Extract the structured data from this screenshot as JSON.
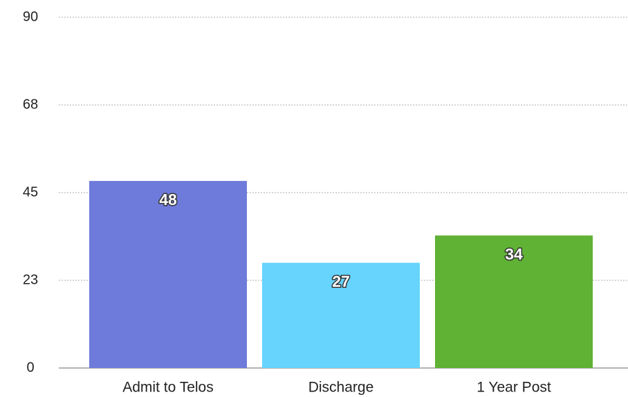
{
  "chart_data": {
    "type": "bar",
    "categories": [
      "Admit to Telos",
      "Discharge",
      "1 Year Post"
    ],
    "values": [
      48,
      27,
      34
    ],
    "colors": [
      "#6e7bdb",
      "#66d4fd",
      "#5fb234"
    ],
    "ylim": [
      0,
      90
    ],
    "yticks": [
      0,
      {
        "value": 22.5,
        "label": "23"
      },
      45,
      {
        "value": 67.5,
        "label": "68"
      },
      90
    ],
    "grid": true
  }
}
